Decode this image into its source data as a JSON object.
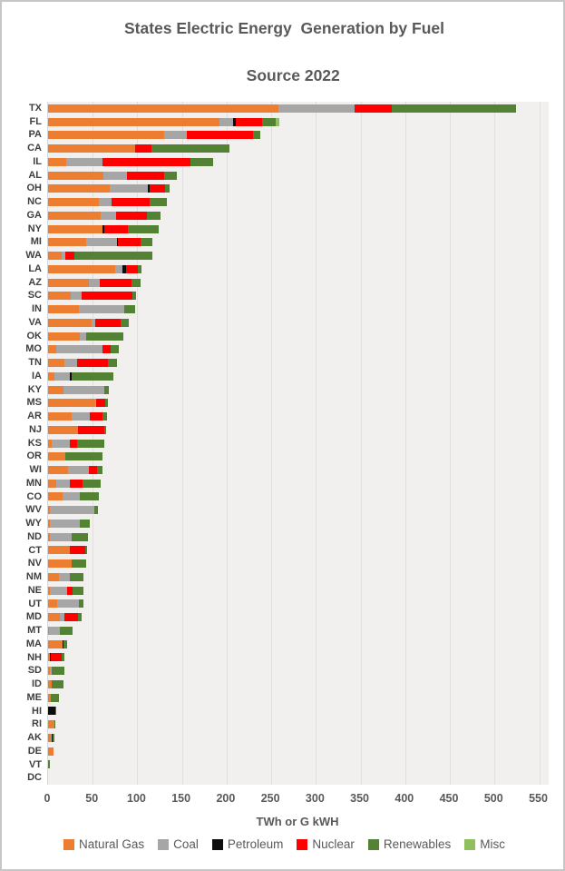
{
  "title": {
    "line1": "States Electric Energy  Generation by Fuel",
    "line2": "Source 2022"
  },
  "x_axis": {
    "label": "TWh or G kWH",
    "ticks": [
      0,
      50,
      100,
      150,
      200,
      250,
      300,
      350,
      400,
      450,
      500,
      550
    ],
    "max": 550
  },
  "legend": [
    {
      "key": "natural_gas",
      "label": "Natural Gas",
      "color": "#ED7D31"
    },
    {
      "key": "coal",
      "label": "Coal",
      "color": "#A6A6A6"
    },
    {
      "key": "petroleum",
      "label": "Petroleum",
      "color": "#0D0D0D"
    },
    {
      "key": "nuclear",
      "label": "Nuclear",
      "color": "#FE0000"
    },
    {
      "key": "renewables",
      "label": "Renewables",
      "color": "#548235"
    },
    {
      "key": "misc",
      "label": "Misc",
      "color": "#8FBF5E"
    }
  ],
  "chart_data": {
    "type": "bar",
    "orientation": "horizontal",
    "stacked": true,
    "title": "States Electric Energy Generation by Fuel Source 2022",
    "xlabel": "TWh or G kWH",
    "ylabel": "State",
    "xlim": [
      0,
      550
    ],
    "grid": "vertical",
    "legend_position": "bottom",
    "categories": [
      "TX",
      "FL",
      "PA",
      "CA",
      "IL",
      "AL",
      "OH",
      "NC",
      "GA",
      "NY",
      "MI",
      "WA",
      "LA",
      "AZ",
      "SC",
      "IN",
      "VA",
      "OK",
      "MO",
      "TN",
      "IA",
      "KY",
      "MS",
      "AR",
      "NJ",
      "KS",
      "OR",
      "WI",
      "MN",
      "CO",
      "WV",
      "WY",
      "ND",
      "CT",
      "NV",
      "NM",
      "NE",
      "UT",
      "MD",
      "MT",
      "MA",
      "NH",
      "SD",
      "ID",
      "ME",
      "HI",
      "RI",
      "AK",
      "DE",
      "VT",
      "DC"
    ],
    "series": [
      {
        "name": "Natural Gas",
        "key": "natural_gas",
        "color": "#ED7D31",
        "values": [
          258,
          192,
          130,
          98,
          20,
          62,
          69,
          57,
          59,
          61,
          43,
          15,
          75,
          46,
          25,
          35,
          49,
          36,
          9,
          18,
          7,
          17,
          53,
          26,
          34,
          4,
          19,
          22,
          9,
          16,
          2,
          2,
          2,
          24,
          26,
          12,
          2,
          10,
          13,
          1,
          16,
          2,
          2,
          4,
          3,
          0,
          7,
          3,
          6,
          0,
          0
        ]
      },
      {
        "name": "Coal",
        "key": "coal",
        "color": "#A6A6A6",
        "values": [
          85,
          15,
          25,
          0,
          41,
          26,
          43,
          14,
          17,
          0,
          34,
          4,
          8,
          12,
          13,
          50,
          4,
          7,
          52,
          14,
          17,
          46,
          1,
          21,
          0,
          20,
          0,
          24,
          15,
          20,
          50,
          34,
          24,
          0,
          0,
          12,
          19,
          25,
          5,
          12,
          0,
          0,
          2,
          0,
          0,
          0.5,
          0,
          1,
          0,
          0,
          0
        ]
      },
      {
        "name": "Petroleum",
        "key": "petroleum",
        "color": "#0D0D0D",
        "values": [
          0,
          3,
          0,
          0,
          0,
          0,
          2,
          0,
          0,
          2,
          1,
          0,
          4,
          0,
          0,
          0,
          0,
          0,
          0,
          0,
          2,
          0,
          0,
          0,
          0,
          0,
          0,
          0,
          0,
          0,
          0,
          0,
          0,
          0,
          0,
          0,
          0,
          0,
          0,
          0,
          1,
          1,
          0,
          0,
          0,
          7.5,
          0,
          1,
          0,
          0,
          0
        ]
      },
      {
        "name": "Nuclear",
        "key": "nuclear",
        "color": "#FE0000",
        "values": [
          42,
          30,
          75,
          18,
          98,
          42,
          17,
          43,
          35,
          26,
          26,
          10,
          14,
          35,
          56,
          0,
          28,
          0,
          9,
          35,
          0,
          0,
          10,
          14,
          29,
          9,
          0,
          9,
          15,
          0,
          0,
          0,
          0,
          18,
          0,
          0,
          6,
          0,
          16,
          0,
          0,
          12,
          0,
          0,
          0,
          0,
          0,
          0,
          0,
          0,
          0
        ]
      },
      {
        "name": "Renewables",
        "key": "renewables",
        "color": "#548235",
        "values": [
          139,
          15,
          8,
          87,
          26,
          14,
          5,
          19,
          15,
          35,
          13,
          88,
          4,
          11,
          5,
          13,
          9,
          41,
          9,
          10,
          47,
          5,
          3,
          5,
          2,
          30,
          42,
          6,
          20,
          21,
          4,
          11,
          19,
          2,
          17,
          16,
          13,
          5,
          4,
          14,
          4,
          3,
          14,
          13,
          9,
          1.5,
          1,
          2,
          0,
          2,
          0
        ]
      },
      {
        "name": "Misc",
        "key": "misc",
        "color": "#8FBF5E",
        "values": [
          0,
          4,
          0,
          0,
          0,
          0,
          0,
          0,
          0,
          0,
          0,
          0,
          0,
          0,
          0,
          0,
          0,
          0,
          0,
          0,
          0,
          0,
          0,
          0,
          0,
          0,
          0,
          0,
          0,
          0,
          0,
          0,
          0,
          0,
          0,
          0,
          0,
          0,
          0,
          0,
          0,
          0,
          0,
          0,
          0,
          0,
          0,
          0,
          0,
          0,
          0
        ]
      }
    ]
  }
}
